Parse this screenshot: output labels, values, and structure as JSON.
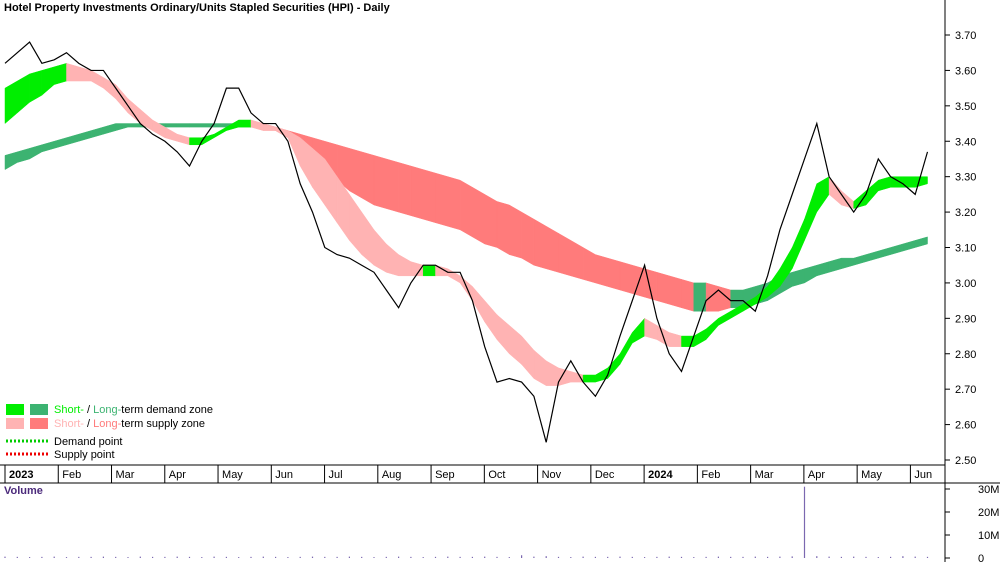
{
  "chart_data": [
    {
      "type": "zone-chart",
      "title": "Hotel Property Investments Ordinary/Units Stapled Securities (HPI) - Daily",
      "x_labels": [
        "2023",
        "Feb",
        "Mar",
        "Apr",
        "May",
        "Jun",
        "Jul",
        "Aug",
        "Sep",
        "Oct",
        "Nov",
        "Dec",
        "2024",
        "Feb",
        "Mar",
        "Apr",
        "May",
        "Jun"
      ],
      "ylim": [
        2.5,
        3.7
      ],
      "yticks": [
        {
          "value": 2.5,
          "label": "2.50"
        },
        {
          "value": 2.6,
          "label": "2.60"
        },
        {
          "value": 2.7,
          "label": "2.70"
        },
        {
          "value": 2.8,
          "label": "2.80"
        },
        {
          "value": 2.9,
          "label": "2.90"
        },
        {
          "value": 3.0,
          "label": "3.00"
        },
        {
          "value": 3.1,
          "label": "3.10"
        },
        {
          "value": 3.2,
          "label": "3.20"
        },
        {
          "value": 3.3,
          "label": "3.30"
        },
        {
          "value": 3.4,
          "label": "3.40"
        },
        {
          "value": 3.5,
          "label": "3.50"
        },
        {
          "value": 3.6,
          "label": "3.60"
        },
        {
          "value": 3.7,
          "label": "3.70"
        }
      ],
      "price": {
        "color": "#000000",
        "values": [
          3.62,
          3.65,
          3.68,
          3.62,
          3.63,
          3.65,
          3.62,
          3.6,
          3.6,
          3.55,
          3.5,
          3.45,
          3.42,
          3.4,
          3.37,
          3.33,
          3.4,
          3.45,
          3.55,
          3.55,
          3.48,
          3.45,
          3.45,
          3.4,
          3.28,
          3.2,
          3.1,
          3.08,
          3.07,
          3.05,
          3.03,
          2.98,
          2.93,
          3.0,
          3.05,
          3.05,
          3.03,
          3.03,
          2.95,
          2.82,
          2.72,
          2.73,
          2.72,
          2.68,
          2.55,
          2.72,
          2.78,
          2.72,
          2.68,
          2.74,
          2.85,
          2.95,
          3.05,
          2.9,
          2.8,
          2.75,
          2.85,
          2.95,
          2.98,
          2.95,
          2.95,
          2.92,
          3.02,
          3.15,
          3.25,
          3.35,
          3.45,
          3.3,
          3.25,
          3.2,
          3.25,
          3.35,
          3.3,
          3.28,
          3.25,
          3.37
        ]
      },
      "short_band": {
        "upper": [
          3.55,
          3.57,
          3.59,
          3.6,
          3.61,
          3.62,
          3.61,
          3.6,
          3.58,
          3.56,
          3.52,
          3.49,
          3.46,
          3.44,
          3.42,
          3.41,
          3.41,
          3.42,
          3.44,
          3.46,
          3.46,
          3.45,
          3.44,
          3.43,
          3.41,
          3.38,
          3.35,
          3.3,
          3.25,
          3.2,
          3.15,
          3.11,
          3.08,
          3.06,
          3.05,
          3.05,
          3.04,
          3.02,
          2.99,
          2.95,
          2.91,
          2.88,
          2.85,
          2.81,
          2.78,
          2.76,
          2.75,
          2.74,
          2.74,
          2.76,
          2.8,
          2.86,
          2.9,
          2.88,
          2.86,
          2.85,
          2.85,
          2.87,
          2.9,
          2.92,
          2.94,
          2.96,
          2.99,
          3.04,
          3.1,
          3.18,
          3.28,
          3.3,
          3.26,
          3.23,
          3.26,
          3.29,
          3.3,
          3.3,
          3.3,
          3.3
        ],
        "lower": [
          3.45,
          3.48,
          3.51,
          3.53,
          3.56,
          3.57,
          3.57,
          3.57,
          3.55,
          3.52,
          3.48,
          3.45,
          3.43,
          3.41,
          3.4,
          3.39,
          3.39,
          3.41,
          3.43,
          3.44,
          3.44,
          3.43,
          3.43,
          3.41,
          3.33,
          3.27,
          3.22,
          3.17,
          3.12,
          3.08,
          3.05,
          3.03,
          3.02,
          3.02,
          3.02,
          3.02,
          3.02,
          3.0,
          2.95,
          2.89,
          2.84,
          2.8,
          2.77,
          2.73,
          2.71,
          2.71,
          2.72,
          2.72,
          2.72,
          2.73,
          2.77,
          2.83,
          2.85,
          2.84,
          2.82,
          2.82,
          2.82,
          2.84,
          2.88,
          2.9,
          2.92,
          2.94,
          2.96,
          2.99,
          3.04,
          3.12,
          3.2,
          3.25,
          3.22,
          3.21,
          3.22,
          3.26,
          3.27,
          3.27,
          3.27,
          3.28
        ]
      },
      "long_band": {
        "upper": [
          3.36,
          3.37,
          3.38,
          3.39,
          3.4,
          3.41,
          3.42,
          3.43,
          3.44,
          3.45,
          3.45,
          3.45,
          3.45,
          3.45,
          3.45,
          3.45,
          3.45,
          3.45,
          3.45,
          3.45,
          3.45,
          3.45,
          3.44,
          3.43,
          3.42,
          3.41,
          3.4,
          3.39,
          3.38,
          3.37,
          3.36,
          3.35,
          3.34,
          3.33,
          3.32,
          3.31,
          3.3,
          3.29,
          3.27,
          3.25,
          3.23,
          3.22,
          3.2,
          3.18,
          3.16,
          3.14,
          3.12,
          3.1,
          3.08,
          3.07,
          3.06,
          3.05,
          3.04,
          3.03,
          3.02,
          3.01,
          3.0,
          3.0,
          2.99,
          2.98,
          2.98,
          2.99,
          3.0,
          3.02,
          3.03,
          3.04,
          3.05,
          3.06,
          3.07,
          3.07,
          3.08,
          3.09,
          3.1,
          3.11,
          3.12,
          3.13
        ],
        "lower": [
          3.32,
          3.34,
          3.35,
          3.37,
          3.38,
          3.39,
          3.4,
          3.41,
          3.42,
          3.43,
          3.44,
          3.44,
          3.44,
          3.44,
          3.44,
          3.44,
          3.44,
          3.44,
          3.44,
          3.44,
          3.44,
          3.44,
          3.43,
          3.41,
          3.38,
          3.35,
          3.32,
          3.29,
          3.26,
          3.24,
          3.22,
          3.21,
          3.2,
          3.19,
          3.18,
          3.17,
          3.16,
          3.15,
          3.13,
          3.11,
          3.1,
          3.08,
          3.07,
          3.05,
          3.04,
          3.03,
          3.02,
          3.01,
          3.0,
          2.99,
          2.98,
          2.97,
          2.96,
          2.95,
          2.94,
          2.93,
          2.92,
          2.92,
          2.92,
          2.93,
          2.93,
          2.94,
          2.95,
          2.97,
          2.99,
          3.0,
          3.02,
          3.03,
          3.04,
          3.05,
          3.06,
          3.07,
          3.08,
          3.09,
          3.1,
          3.11
        ]
      },
      "colors": {
        "short_demand": "#00ee00",
        "long_demand": "#3cb371",
        "short_supply": "#ffb3b3",
        "long_supply": "#ff7b7b",
        "demand_point": "#00cc00",
        "supply_point": "#ee0000"
      },
      "legend": {
        "short": "Short-",
        "separator": " / ",
        "long": "Long-",
        "demand": "term demand zone",
        "supply": "term supply zone",
        "demand_point": "Demand point",
        "supply_point": "Supply point"
      }
    },
    {
      "type": "bar",
      "title": "Volume",
      "color": "#7b68b0",
      "ylim": [
        0,
        32
      ],
      "yticks": [
        0,
        {
          "value": 10,
          "label": "10M"
        },
        {
          "value": 20,
          "label": "20M"
        },
        {
          "value": 30,
          "label": "30M"
        }
      ],
      "values": [
        0.6,
        0.5,
        0.4,
        0.5,
        0.6,
        0.4,
        0.5,
        0.5,
        0.6,
        0.5,
        0.4,
        0.6,
        0.5,
        0.5,
        0.6,
        0.5,
        0.4,
        0.6,
        0.5,
        0.4,
        0.5,
        0.6,
        0.5,
        0.4,
        0.5,
        0.6,
        0.5,
        0.5,
        0.6,
        0.5,
        0.4,
        0.5,
        0.6,
        0.5,
        0.4,
        0.5,
        0.6,
        0.5,
        0.5,
        0.6,
        0.5,
        0.4,
        1.2,
        0.6,
        0.8,
        0.5,
        0.4,
        0.6,
        0.5,
        0.5,
        0.6,
        0.5,
        0.4,
        0.5,
        0.6,
        0.5,
        0.4,
        0.5,
        0.6,
        0.5,
        0.5,
        0.6,
        0.5,
        0.6,
        0.7,
        31,
        0.8,
        0.6,
        0.5,
        0.6,
        0.5,
        0.4,
        0.5,
        0.8,
        0.6,
        0.5
      ]
    }
  ]
}
